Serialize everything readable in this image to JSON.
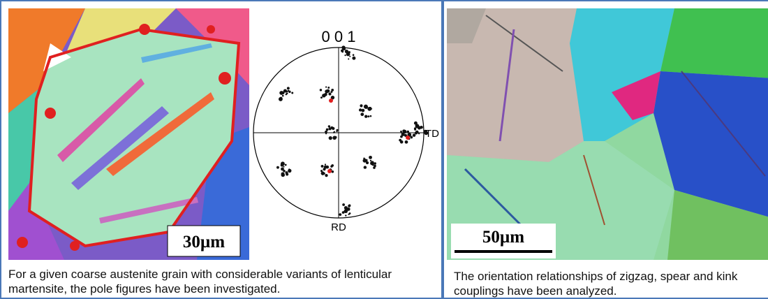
{
  "left_panel": {
    "scale_bar": "30µm",
    "pole_figure": {
      "title": "0 0 1",
      "td_label": "TD",
      "rd_label": "RD"
    },
    "caption": "For a given coarse austenite grain with considerable variants of lenticular martensite, the pole figures have been investigated."
  },
  "right_panel": {
    "scale_bar": "50µm",
    "caption": "The  orientation relationships of zigzag, spear and kink couplings have been analyzed."
  }
}
